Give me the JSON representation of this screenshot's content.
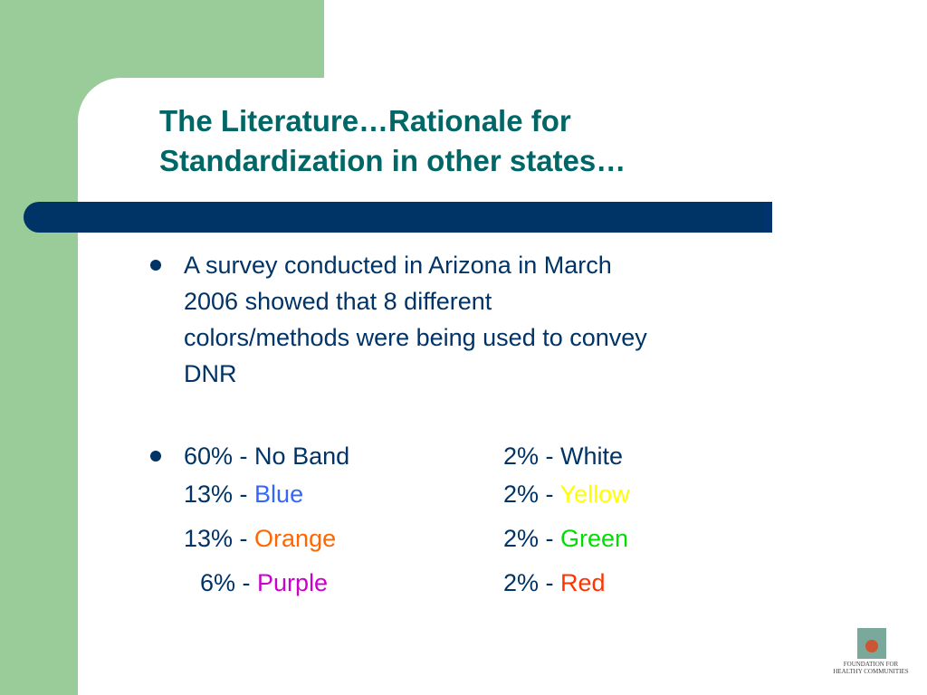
{
  "title": {
    "line1": "The Literature…Rationale for",
    "line2": "Standardization in other states…"
  },
  "bullet1": {
    "lines": [
      "A survey conducted in Arizona in March",
      "2006 showed that 8 different",
      "colors/methods were being used to convey",
      "DNR"
    ]
  },
  "stats": {
    "left": [
      {
        "prefix": "60% - ",
        "label": "No Band",
        "color": "#003366"
      },
      {
        "prefix": "13% - ",
        "label": "Blue",
        "color": "#3366ff"
      },
      {
        "prefix": "13% - ",
        "label": "Orange",
        "color": "#ff6600"
      },
      {
        "prefix": "6% - ",
        "label": "Purple",
        "color": "#cc00cc"
      }
    ],
    "right": [
      {
        "prefix": "2% - ",
        "label": "White",
        "color": "#003366"
      },
      {
        "prefix": "2% - ",
        "label": "Yellow",
        "color": "#ffff00"
      },
      {
        "prefix": "2% - ",
        "label": "Green",
        "color": "#00dd00"
      },
      {
        "prefix": "2% - ",
        "label": "Red",
        "color": "#ff3300"
      }
    ]
  },
  "logo": {
    "line1": "FOUNDATION FOR",
    "line2": "HEALTHY COMMUNITIES"
  },
  "colors": {
    "title": "#006666",
    "body_text": "#003366",
    "band": "#003366",
    "side_background": "#99cc99"
  }
}
